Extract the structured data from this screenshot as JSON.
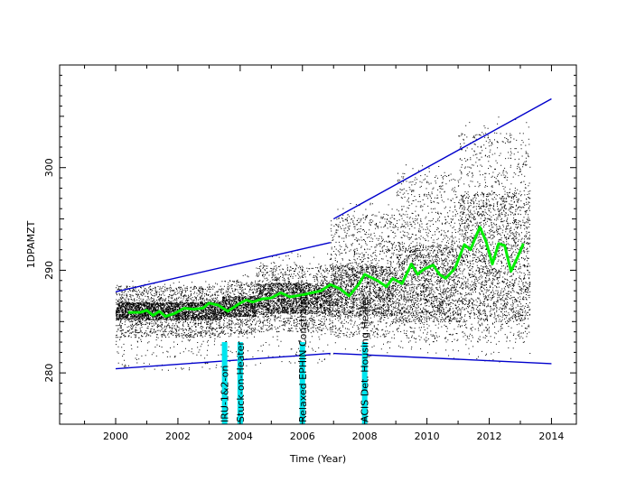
{
  "chart_data": {
    "type": "scatter",
    "title": "",
    "xlabel": "Time (Year)",
    "ylabel": "1DPAMZT",
    "xlim": [
      1998.2,
      2014.8
    ],
    "ylim": [
      275,
      310
    ],
    "x_ticks": [
      2000,
      2002,
      2004,
      2006,
      2008,
      2010,
      2012,
      2014
    ],
    "y_ticks": [
      280,
      290,
      300
    ],
    "grid": false,
    "colors": {
      "points": "#000000",
      "envelope": "#0000cc",
      "trend": "#00ee00",
      "event_marker": "#00e5ee"
    },
    "envelope_lines": [
      {
        "name": "upper-envelope-pre-2007",
        "x": [
          2000.0,
          2006.9
        ],
        "y": [
          287.9,
          292.7
        ]
      },
      {
        "name": "upper-envelope-post-2007",
        "x": [
          2007.0,
          2014.0
        ],
        "y": [
          295.0,
          306.7
        ]
      },
      {
        "name": "lower-envelope-pre-2007",
        "x": [
          2000.0,
          2006.9
        ],
        "y": [
          280.4,
          281.9
        ]
      },
      {
        "name": "lower-envelope-post-2007",
        "x": [
          2007.0,
          2014.0
        ],
        "y": [
          281.9,
          280.9
        ]
      }
    ],
    "trend": {
      "x": [
        2000.4,
        2000.8,
        2001.0,
        2001.2,
        2001.4,
        2001.6,
        2001.9,
        2002.2,
        2002.5,
        2002.8,
        2003.0,
        2003.3,
        2003.6,
        2003.8,
        2004.0,
        2004.2,
        2004.4,
        2004.7,
        2005.0,
        2005.3,
        2005.6,
        2006.0,
        2006.3,
        2006.6,
        2006.9,
        2007.2,
        2007.5,
        2007.8,
        2008.0,
        2008.4,
        2008.7,
        2008.9,
        2009.2,
        2009.5,
        2009.7,
        2009.9,
        2010.2,
        2010.4,
        2010.6,
        2010.9,
        2011.2,
        2011.4,
        2011.6,
        2011.7,
        2011.9,
        2012.1,
        2012.3,
        2012.5,
        2012.7,
        2012.9,
        2013.1
      ],
      "y": [
        285.9,
        285.9,
        286.1,
        285.6,
        286.0,
        285.5,
        285.8,
        286.3,
        286.2,
        286.3,
        286.8,
        286.6,
        286.0,
        286.4,
        286.8,
        287.1,
        286.9,
        287.2,
        287.3,
        287.8,
        287.4,
        287.6,
        287.8,
        288.0,
        288.6,
        288.2,
        287.5,
        288.6,
        289.6,
        289.0,
        288.4,
        289.2,
        288.7,
        290.6,
        289.6,
        290.1,
        290.5,
        289.6,
        289.2,
        290.2,
        292.5,
        292.0,
        293.5,
        294.2,
        292.8,
        290.6,
        292.6,
        292.4,
        289.9,
        291.2,
        292.6
      ]
    },
    "events": [
      {
        "label": "IRU-1&2-on",
        "x": 2003.5
      },
      {
        "label": "Stuck-on-Heater",
        "x": 2004.0
      },
      {
        "label": "Relaxed EPHIN Constraint",
        "x": 2006.0
      },
      {
        "label": "ACIS Det. Housing Heater",
        "x": 2008.0
      }
    ],
    "scatter_density": [
      {
        "period": [
          2000.0,
          2003.4
        ],
        "core": [
          285.2,
          286.9
        ],
        "spread": [
          283.5,
          288.5
        ],
        "tail": [
          280.3,
          289.0
        ]
      },
      {
        "period": [
          2003.4,
          2004.5
        ],
        "core": [
          285.5,
          287.5
        ],
        "spread": [
          283.8,
          289.0
        ],
        "tail": [
          280.5,
          289.7
        ]
      },
      {
        "period": [
          2004.5,
          2006.9
        ],
        "core": [
          285.8,
          288.8
        ],
        "spread": [
          284.0,
          290.5
        ],
        "tail": [
          280.9,
          292.0
        ]
      },
      {
        "period": [
          2006.9,
          2009.0
        ],
        "core": [
          285.5,
          290.5
        ],
        "spread": [
          283.5,
          295.5
        ],
        "tail": [
          281.6,
          296.6
        ]
      },
      {
        "period": [
          2009.0,
          2011.0
        ],
        "core": [
          285.0,
          292.5
        ],
        "spread": [
          283.0,
          299.5
        ],
        "tail": [
          281.3,
          300.4
        ]
      },
      {
        "period": [
          2011.0,
          2013.3
        ],
        "core": [
          285.0,
          297.5
        ],
        "spread": [
          283.0,
          303.5
        ],
        "tail": [
          280.9,
          305.0
        ]
      }
    ]
  }
}
